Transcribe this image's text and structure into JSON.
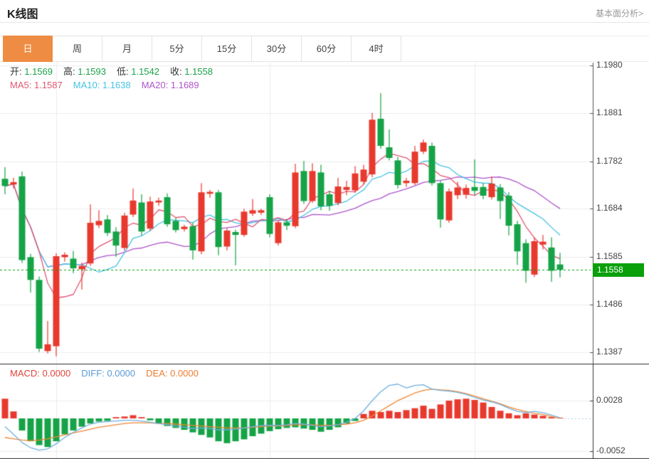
{
  "header": {
    "title": "K线图",
    "link_label": "基本面分析>"
  },
  "tabs": {
    "selected_index": 0,
    "items": [
      {
        "name": "day",
        "label": "日"
      },
      {
        "name": "week",
        "label": "周"
      },
      {
        "name": "month",
        "label": "月"
      },
      {
        "name": "5min",
        "label": "5分"
      },
      {
        "name": "15min",
        "label": "15分"
      },
      {
        "name": "30min",
        "label": "30分"
      },
      {
        "name": "60min",
        "label": "60分"
      },
      {
        "name": "4hour",
        "label": "4时"
      }
    ]
  },
  "info_bar": {
    "ohlc": [
      {
        "name": "open",
        "label": "开:",
        "value": "1.1569"
      },
      {
        "name": "high",
        "label": "高:",
        "value": "1.1593"
      },
      {
        "name": "low",
        "label": "低:",
        "value": "1.1542"
      },
      {
        "name": "close",
        "label": "收:",
        "value": "1.1558"
      }
    ],
    "ma": [
      {
        "name": "ma5",
        "label": "MA5:",
        "value": "1.1587",
        "color": "#e25672"
      },
      {
        "name": "ma10",
        "label": "MA10:",
        "value": "1.1638",
        "color": "#46c3e3"
      },
      {
        "name": "ma20",
        "label": "MA20:",
        "value": "1.1689",
        "color": "#af54cb"
      }
    ]
  },
  "macd_legend": [
    {
      "name": "macd",
      "label": "MACD:",
      "value": "0.0000",
      "color": "#e0443c"
    },
    {
      "name": "diff",
      "label": "DIFF:",
      "value": "0.0000",
      "color": "#5b9bd5"
    },
    {
      "name": "dea",
      "label": "DEA:",
      "value": "0.0000",
      "color": "#ed7d31"
    }
  ],
  "colors": {
    "up": "#e8392e",
    "down": "#16a347",
    "price_tag_bg": "#0aa00a",
    "price_line": "#0aa00a",
    "ma5": "#e25672",
    "ma10": "#46c3e3",
    "ma20": "#af54cb",
    "diff_line": "#6fb0e0",
    "dea_line": "#f08632",
    "grid": "#ededed",
    "frame": "#333333",
    "axis_line": "#555555",
    "axis_text": "#444444",
    "ohlc_value": "#1ba24a",
    "tab_active_bg": "#ee8c44",
    "macd_zero_dash": "#a9cfe3"
  },
  "chart_data": {
    "type": "candlestick",
    "title": "K线图",
    "panels": [
      "price",
      "macd"
    ],
    "legend_position": "top-left",
    "grid": true,
    "y_axis_ticks": [
      "1.1980",
      "1.1881",
      "1.1782",
      "1.1684",
      "1.1585",
      "1.1486",
      "1.1387"
    ],
    "price_axis": {
      "top_price": 1.1986,
      "bottom_price": 1.1364
    },
    "last_price": 1.1558,
    "last_price_label": "1.1558",
    "ma_periods": [
      5,
      10,
      20
    ],
    "grid_candle_indices": [
      6,
      31,
      55
    ],
    "candles": [
      [
        1.1746,
        1.177,
        1.1714,
        1.1731
      ],
      [
        1.1734,
        1.1748,
        1.1726,
        1.1739
      ],
      [
        1.1751,
        1.1761,
        1.1572,
        1.1578
      ],
      [
        1.1584,
        1.1591,
        1.1511,
        1.1537
      ],
      [
        1.1537,
        1.1544,
        1.1388,
        1.1395
      ],
      [
        1.139,
        1.1452,
        1.1385,
        1.1404
      ],
      [
        1.14,
        1.1592,
        1.1379,
        1.1586
      ],
      [
        1.1584,
        1.1594,
        1.1575,
        1.1589
      ],
      [
        1.1581,
        1.1597,
        1.1551,
        1.1561
      ],
      [
        1.1559,
        1.1573,
        1.1517,
        1.1566
      ],
      [
        1.1571,
        1.1693,
        1.1566,
        1.1655
      ],
      [
        1.165,
        1.1681,
        1.1644,
        1.1659
      ],
      [
        1.1662,
        1.1671,
        1.1628,
        1.1634
      ],
      [
        1.1637,
        1.1646,
        1.1585,
        1.1608
      ],
      [
        1.1603,
        1.1676,
        1.1597,
        1.167
      ],
      [
        1.1672,
        1.1726,
        1.1667,
        1.1701
      ],
      [
        1.1697,
        1.1714,
        1.1629,
        1.1637
      ],
      [
        1.1643,
        1.1709,
        1.1638,
        1.1699
      ],
      [
        1.1697,
        1.1707,
        1.169,
        1.1701
      ],
      [
        1.1708,
        1.1716,
        1.1647,
        1.1652
      ],
      [
        1.1659,
        1.1665,
        1.1635,
        1.164
      ],
      [
        1.1642,
        1.1651,
        1.1637,
        1.1647
      ],
      [
        1.1648,
        1.1655,
        1.1579,
        1.1598
      ],
      [
        1.1596,
        1.1737,
        1.159,
        1.1718
      ],
      [
        1.1715,
        1.1723,
        1.1707,
        1.1719
      ],
      [
        1.1718,
        1.1723,
        1.1588,
        1.1605
      ],
      [
        1.1606,
        1.1644,
        1.1598,
        1.1639
      ],
      [
        1.1636,
        1.1641,
        1.1567,
        1.163
      ],
      [
        1.163,
        1.1684,
        1.1626,
        1.1678
      ],
      [
        1.1674,
        1.1704,
        1.1669,
        1.1681
      ],
      [
        1.1676,
        1.1684,
        1.1671,
        1.1681
      ],
      [
        1.1708,
        1.1714,
        1.1625,
        1.1632
      ],
      [
        1.1613,
        1.1661,
        1.1608,
        1.1656
      ],
      [
        1.1656,
        1.1663,
        1.164,
        1.1649
      ],
      [
        1.1648,
        1.1777,
        1.1644,
        1.1759
      ],
      [
        1.1762,
        1.1783,
        1.1694,
        1.17
      ],
      [
        1.17,
        1.1778,
        1.1696,
        1.1762
      ],
      [
        1.1759,
        1.1775,
        1.1681,
        1.1689
      ],
      [
        1.1714,
        1.1721,
        1.168,
        1.169
      ],
      [
        1.1696,
        1.1748,
        1.1691,
        1.173
      ],
      [
        1.1723,
        1.1742,
        1.1712,
        1.1729
      ],
      [
        1.1722,
        1.1772,
        1.1717,
        1.1757
      ],
      [
        1.174,
        1.1775,
        1.1735,
        1.1765
      ],
      [
        1.1755,
        1.1882,
        1.1749,
        1.1868
      ],
      [
        1.187,
        1.1923,
        1.1808,
        1.1814
      ],
      [
        1.1811,
        1.1848,
        1.1784,
        1.1789
      ],
      [
        1.1784,
        1.1791,
        1.1726,
        1.1733
      ],
      [
        1.1737,
        1.1748,
        1.1729,
        1.1742
      ],
      [
        1.1737,
        1.1814,
        1.1733,
        1.1802
      ],
      [
        1.1802,
        1.1827,
        1.1797,
        1.1821
      ],
      [
        1.1814,
        1.1821,
        1.1732,
        1.1737
      ],
      [
        1.1737,
        1.1743,
        1.1645,
        1.1662
      ],
      [
        1.166,
        1.1726,
        1.1655,
        1.172
      ],
      [
        1.1712,
        1.174,
        1.1704,
        1.1728
      ],
      [
        1.1713,
        1.1734,
        1.1705,
        1.1727
      ],
      [
        1.1729,
        1.1786,
        1.1712,
        1.1721
      ],
      [
        1.1729,
        1.1737,
        1.1704,
        1.1711
      ],
      [
        1.1708,
        1.1751,
        1.1703,
        1.1736
      ],
      [
        1.1728,
        1.1735,
        1.1663,
        1.17
      ],
      [
        1.1711,
        1.1718,
        1.1629,
        1.1649
      ],
      [
        1.1652,
        1.1659,
        1.1568,
        1.1596
      ],
      [
        1.1613,
        1.1621,
        1.1531,
        1.1556
      ],
      [
        1.1548,
        1.1625,
        1.1543,
        1.1617
      ],
      [
        1.161,
        1.163,
        1.16,
        1.1616
      ],
      [
        1.1604,
        1.1625,
        1.1533,
        1.1556
      ],
      [
        1.1569,
        1.1593,
        1.1542,
        1.1558
      ]
    ],
    "macd": {
      "y_axis_ticks": [
        "0.0028",
        "-0.0052"
      ],
      "axis": {
        "top_value": 0.00862,
        "bottom_value": -0.00639
      },
      "value_scale": 0.0001,
      "hist": [
        31,
        11,
        -19,
        -36,
        -42,
        -45,
        -36,
        -25,
        -19,
        -13,
        -8,
        -5,
        -4,
        2,
        3,
        5,
        2,
        -3,
        -8,
        -12,
        -15,
        -18,
        -22,
        -26,
        -30,
        -36,
        -39,
        -36,
        -33,
        -28,
        -24,
        -20,
        -17,
        -15,
        -14,
        -16,
        -18,
        -21,
        -18,
        -14,
        -8,
        -4,
        7,
        12,
        10,
        12,
        10,
        13,
        16,
        20,
        15,
        22,
        28,
        30,
        31,
        29,
        25,
        18,
        12,
        8,
        5,
        8,
        6,
        4,
        2,
        1
      ],
      "diff": [
        -13,
        -25,
        -38,
        -46,
        -50,
        -48,
        -40,
        -30,
        -22,
        -15,
        -9,
        -6,
        -5,
        -4,
        -3,
        -3,
        -4,
        -6,
        -8,
        -10,
        -12,
        -14,
        -16,
        -15,
        -16,
        -18,
        -18,
        -17,
        -15,
        -13,
        -11,
        -11,
        -11,
        -10,
        -8,
        -9,
        -11,
        -13,
        -12,
        -10,
        -6,
        0,
        12,
        28,
        42,
        52,
        54,
        48,
        52,
        53,
        46,
        44,
        43,
        41,
        38,
        33,
        29,
        26,
        22,
        16,
        11,
        9,
        11,
        9,
        5,
        1
      ],
      "dea": [
        -30,
        -32,
        -34,
        -35,
        -34,
        -32,
        -29,
        -26,
        -23,
        -20,
        -17,
        -14,
        -12,
        -10,
        -8,
        -7,
        -7,
        -7,
        -8,
        -8,
        -9,
        -10,
        -11,
        -12,
        -13,
        -14,
        -15,
        -15,
        -15,
        -14,
        -13,
        -12,
        -12,
        -11,
        -10,
        -10,
        -10,
        -11,
        -11,
        -10,
        -9,
        -7,
        -3,
        4,
        12,
        20,
        28,
        34,
        40,
        44,
        46,
        45,
        44,
        42,
        39,
        35,
        31,
        27,
        23,
        18,
        14,
        11,
        8,
        6,
        3,
        0
      ]
    }
  }
}
